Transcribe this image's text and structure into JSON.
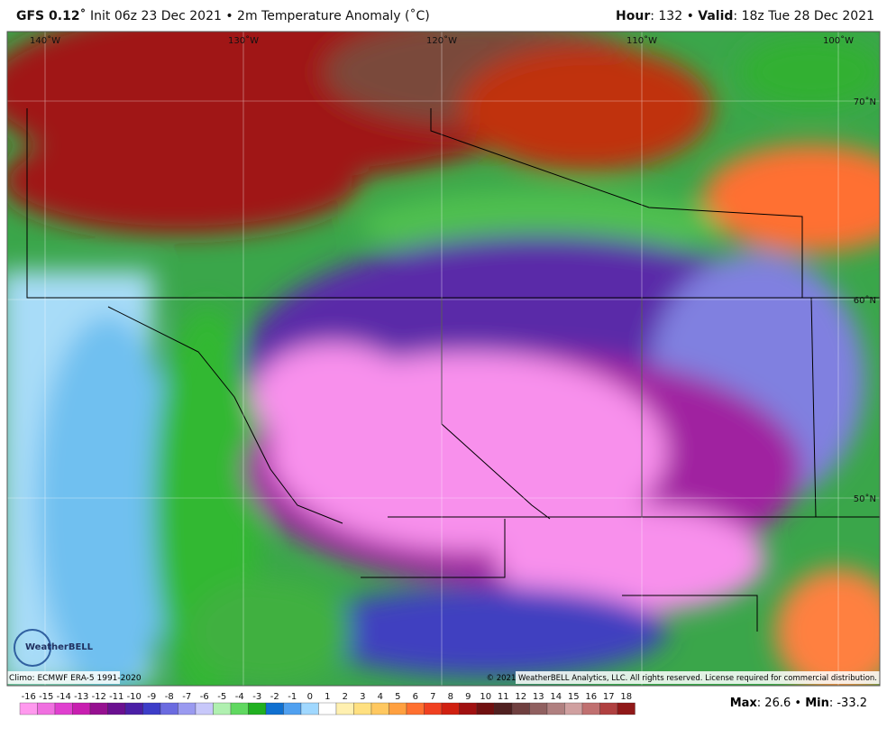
{
  "header": {
    "left": [
      {
        "text": "GFS 0.12˚",
        "bold": true
      },
      {
        "text": " Init 06z 23 Dec 2021 • 2m Temperature Anomaly (˚C)",
        "bold": false
      }
    ],
    "right": [
      {
        "text": "Hour",
        "bold": true
      },
      {
        "text": ": 132 • ",
        "bold": false
      },
      {
        "text": "Valid",
        "bold": true
      },
      {
        "text": ": 18z Tue 28 Dec 2021",
        "bold": false
      }
    ]
  },
  "map": {
    "lon_labels": [
      "140˚W",
      "130˚W",
      "120˚W",
      "110˚W",
      "100˚W"
    ],
    "lat_labels": [
      "70˚N",
      "60˚N",
      "50˚N"
    ],
    "logo": "WeatherBELL"
  },
  "footer": {
    "climo": "Climo: ECMWF ERA-5 1991-2020",
    "copyright": "© 2021 WeatherBELL Analytics, LLC. All rights reserved. License required for commercial distribution.",
    "stats": [
      {
        "text": "Max",
        "bold": true
      },
      {
        "text": ": 26.6 • ",
        "bold": false
      },
      {
        "text": "Min",
        "bold": true
      },
      {
        "text": ": -33.2",
        "bold": false
      }
    ]
  },
  "colorbar": {
    "ticks": [
      -16,
      -15,
      -14,
      -13,
      -12,
      -11,
      -10,
      -9,
      -8,
      -7,
      -6,
      -5,
      -4,
      -3,
      -2,
      -1,
      0,
      1,
      2,
      3,
      4,
      5,
      6,
      7,
      8,
      9,
      10,
      11,
      12,
      13,
      14,
      15,
      16,
      17,
      18
    ],
    "colors": [
      "#ff99ee",
      "#f070e0",
      "#e040cf",
      "#c81eb0",
      "#961090",
      "#6a1090",
      "#4b1fa6",
      "#3d3dc8",
      "#6b6be0",
      "#9a9af0",
      "#c8c8fa",
      "#b0f0b0",
      "#60d860",
      "#20b020",
      "#1070d0",
      "#50a0f0",
      "#a0d8ff",
      "#ffffff",
      "#fff0b0",
      "#ffe080",
      "#ffc860",
      "#ffa040",
      "#ff7030",
      "#f04020",
      "#d02010",
      "#a01010",
      "#701010",
      "#502020",
      "#704040",
      "#906060",
      "#b08080",
      "#d0a0a0",
      "#c07070",
      "#b04040",
      "#901818"
    ]
  }
}
